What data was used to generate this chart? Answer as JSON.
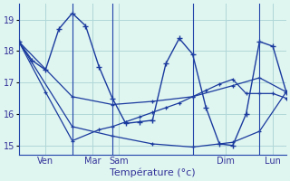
{
  "background_color": "#dff5f0",
  "grid_color": "#b0d8d8",
  "line_color": "#1a3a9e",
  "xlabel": "Température (°c)",
  "ylim": [
    14.7,
    19.5
  ],
  "yticks": [
    15,
    16,
    17,
    18,
    19
  ],
  "xlim": [
    0,
    20
  ],
  "vlines": [
    4,
    7,
    13,
    18
  ],
  "xtick_pos": [
    2,
    5.5,
    7.5,
    15.5,
    19
  ],
  "xtick_labels": [
    "Ven",
    "Mar",
    "Sam",
    "Dim",
    "Lun"
  ],
  "line_main_x": [
    0,
    1,
    2,
    3,
    4,
    5,
    6,
    7,
    8,
    9,
    10,
    11,
    12,
    13,
    14,
    15,
    16,
    17,
    18,
    19,
    20
  ],
  "line_main_y": [
    18.3,
    17.7,
    17.4,
    18.7,
    19.2,
    18.8,
    17.5,
    16.5,
    15.7,
    15.75,
    15.8,
    17.6,
    18.4,
    17.9,
    16.2,
    15.05,
    15.0,
    16.0,
    18.3,
    18.15,
    16.7
  ],
  "line_diag1_x": [
    0,
    4,
    7,
    10,
    13,
    16,
    18,
    20
  ],
  "line_diag1_y": [
    18.3,
    16.55,
    16.3,
    16.4,
    16.55,
    16.9,
    17.15,
    16.7
  ],
  "line_diag2_x": [
    0,
    4,
    7,
    10,
    13,
    16,
    18,
    20
  ],
  "line_diag2_y": [
    18.3,
    15.6,
    15.3,
    15.05,
    14.95,
    15.1,
    15.45,
    16.7
  ],
  "line_flat_x": [
    0,
    2,
    4,
    6,
    7,
    8,
    9,
    10,
    11,
    12,
    13,
    14,
    15,
    16,
    17,
    18,
    19,
    20
  ],
  "line_flat_y": [
    18.3,
    16.7,
    15.15,
    15.5,
    15.6,
    15.75,
    15.9,
    16.05,
    16.2,
    16.35,
    16.55,
    16.75,
    16.95,
    17.1,
    16.65,
    16.65,
    16.65,
    16.5
  ]
}
